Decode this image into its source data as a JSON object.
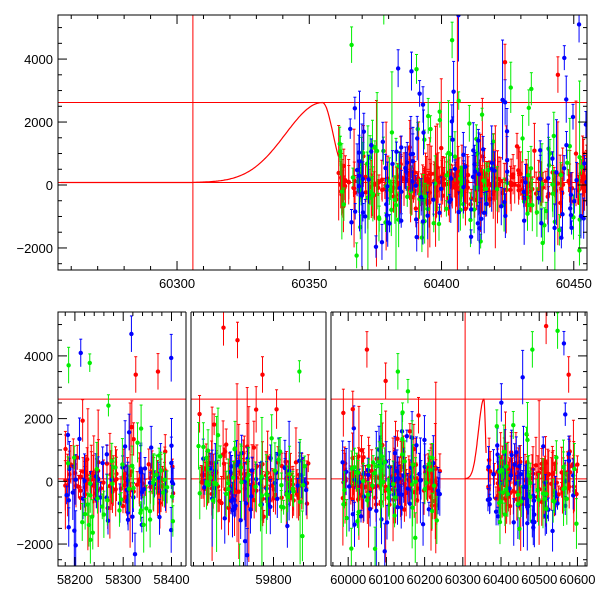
{
  "colors": {
    "red": "#ff0000",
    "green": "#00ee00",
    "blue": "#0000ff",
    "frame": "#000000"
  },
  "chart_data": [
    {
      "type": "scatter",
      "title": "",
      "xlabel": "",
      "ylabel": "",
      "xlim": [
        60255,
        60455
      ],
      "ylim": [
        -2700,
        5400
      ],
      "xticks": [
        60300,
        60350,
        60400,
        60450
      ],
      "xtick_labels": [
        "60300",
        "60350",
        "60400",
        "60450"
      ],
      "yticks": [
        -2000,
        0,
        2000,
        4000
      ],
      "ytick_labels": [
        "−2000",
        "0",
        "2000",
        "4000"
      ],
      "grid": false,
      "legend": "none",
      "model_curve": {
        "color": "red",
        "baseline": 80,
        "peak": 2620,
        "peak_x": 60355,
        "start_x": 60306
      },
      "reference_lines": {
        "vertical_x": [
          60306,
          60406
        ],
        "horizontal_y": [
          80,
          2620
        ]
      },
      "series": [
        {
          "color": "red",
          "x_range": [
            60361,
            60455
          ],
          "scatter_level": [
            -500,
            600
          ],
          "n_points": 260
        },
        {
          "color": "green",
          "x_range": [
            60361,
            60455
          ],
          "scatter_level": [
            -2000,
            2500
          ],
          "n_points": 120
        },
        {
          "color": "blue",
          "x_range": [
            60362,
            60455
          ],
          "scatter_level": [
            -2500,
            2000
          ],
          "n_points": 120
        }
      ],
      "outliers": [
        {
          "color": "green",
          "x": 60366,
          "y": 4450
        },
        {
          "color": "green",
          "x": 60404,
          "y": 4600
        },
        {
          "color": "blue",
          "x": 60393,
          "y": 2550
        },
        {
          "color": "green",
          "x": 60433,
          "y": 2450
        },
        {
          "color": "red",
          "x": 60424,
          "y": 3900
        },
        {
          "color": "red",
          "x": 60444,
          "y": 3500
        },
        {
          "color": "blue",
          "x": 60452,
          "y": 5100
        }
      ]
    },
    {
      "type": "scatter",
      "title": "",
      "xlabel": "",
      "ylabel": "",
      "ylim": [
        -2700,
        5400
      ],
      "broken_x_axis": true,
      "segments": [
        {
          "xlim": [
            58165,
            58430
          ],
          "xticks": [
            58200,
            58300,
            58400
          ],
          "xtick_labels": [
            "58200",
            "58300",
            "58400"
          ]
        },
        {
          "xlim": [
            59635,
            59905
          ],
          "xticks": [
            59800
          ],
          "xtick_labels": [
            "59800"
          ]
        },
        {
          "xlim": [
            59955,
            60625
          ],
          "xticks": [
            60000,
            60100,
            60200,
            60300,
            60400,
            60500,
            60600
          ],
          "xtick_labels": [
            "60000",
            "60100",
            "60200",
            "60300",
            "60400",
            "60500",
            "60600"
          ]
        }
      ],
      "yticks": [
        -2000,
        0,
        2000,
        4000
      ],
      "ytick_labels": [
        "−2000",
        "0",
        "2000",
        "4000"
      ],
      "grid": false,
      "legend": "none",
      "model_curve": {
        "color": "red",
        "baseline": 80,
        "peak": 2620,
        "peak_x": 60355,
        "start_x": 60306
      },
      "reference_lines": {
        "vertical_x": [
          60306
        ],
        "horizontal_y": [
          80,
          2620
        ]
      },
      "series": [
        {
          "color": "red",
          "data_ranges": [
            [
              58180,
              58405
            ],
            [
              59650,
              59870
            ],
            [
              59985,
              60240
            ],
            [
              60365,
              60600
            ]
          ],
          "scatter_level": [
            -900,
            900
          ],
          "n_points": 420
        },
        {
          "color": "blue",
          "data_ranges": [
            [
              58180,
              58405
            ],
            [
              59650,
              59870
            ],
            [
              59985,
              60240
            ],
            [
              60365,
              60600
            ]
          ],
          "scatter_level": [
            -2200,
            1200
          ],
          "n_points": 220
        },
        {
          "color": "green",
          "data_ranges": [
            [
              58180,
              58405
            ],
            [
              59650,
              59870
            ],
            [
              59985,
              60240
            ],
            [
              60365,
              60600
            ]
          ],
          "scatter_level": [
            -2400,
            1200
          ],
          "n_points": 180
        }
      ],
      "outliers": [
        {
          "color": "green",
          "x": 58187,
          "y": 3700
        },
        {
          "color": "red",
          "x": 58326,
          "y": 3400
        },
        {
          "color": "blue",
          "x": 58317,
          "y": 4700
        },
        {
          "color": "red",
          "x": 58372,
          "y": 3500
        },
        {
          "color": "red",
          "x": 59700,
          "y": 4900
        },
        {
          "color": "red",
          "x": 59728,
          "y": 4500
        },
        {
          "color": "red",
          "x": 59778,
          "y": 3400
        },
        {
          "color": "red",
          "x": 60012,
          "y": 2300
        },
        {
          "color": "red",
          "x": 60049,
          "y": 4200
        },
        {
          "color": "red",
          "x": 60098,
          "y": 3200
        },
        {
          "color": "green",
          "x": 60130,
          "y": 3500
        },
        {
          "color": "red",
          "x": 60184,
          "y": 2100
        },
        {
          "color": "green",
          "x": 60482,
          "y": 4200
        },
        {
          "color": "red",
          "x": 60518,
          "y": 4950
        },
        {
          "color": "green",
          "x": 60548,
          "y": 4800
        },
        {
          "color": "red",
          "x": 60577,
          "y": 3400
        }
      ]
    }
  ]
}
